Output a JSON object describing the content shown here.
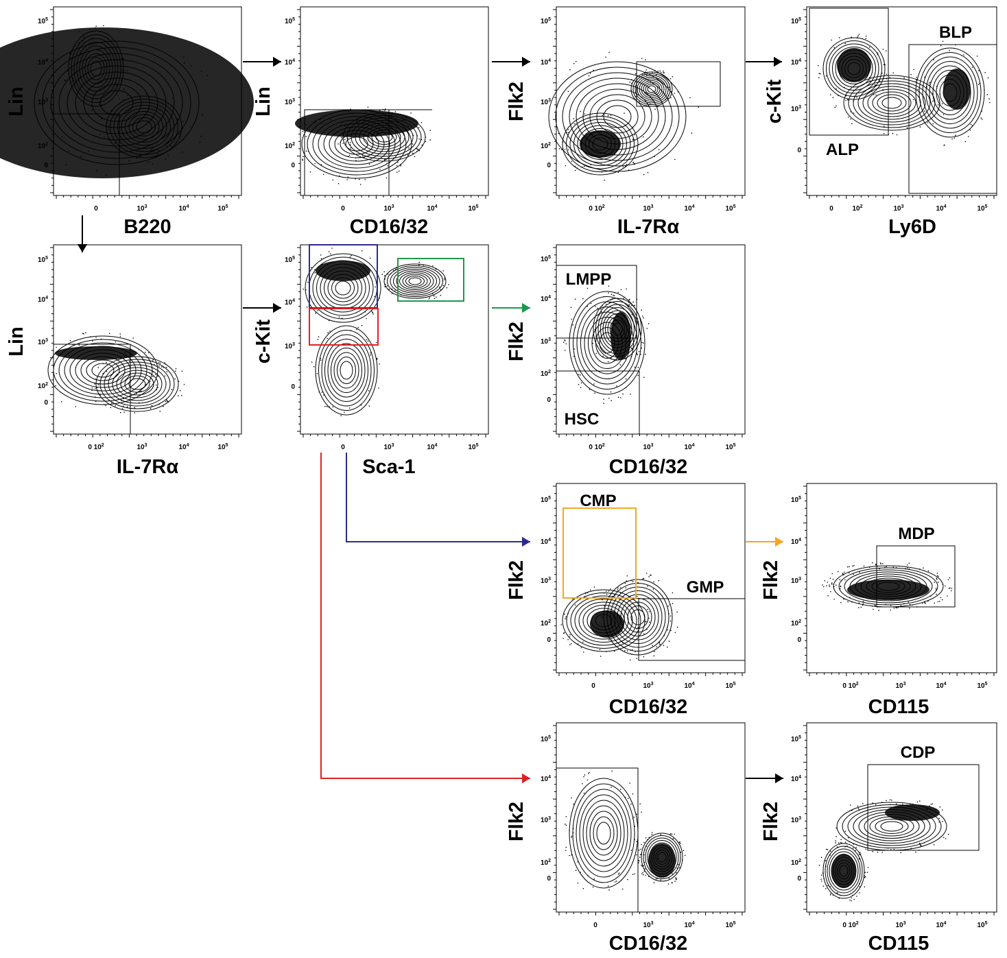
{
  "chart_data": [
    {
      "type": "contour",
      "xlabel": "B220",
      "ylabel": "Lin",
      "x_ticks": [
        "0",
        "10^3",
        "10^4",
        "10^5"
      ],
      "y_ticks": [
        "0",
        "10^2",
        "10^3",
        "10^4",
        "10^5"
      ],
      "gates": [
        {
          "label": "",
          "color": "#000000"
        }
      ]
    },
    {
      "type": "contour",
      "xlabel": "CD16/32",
      "ylabel": "Lin",
      "x_ticks": [
        "0",
        "10^3",
        "10^4",
        "10^5"
      ],
      "y_ticks": [
        "0",
        "10^2",
        "10^3",
        "10^4",
        "10^5"
      ],
      "gates": [
        {
          "label": "",
          "color": "#000000"
        },
        {
          "label": "",
          "color": "#000000"
        }
      ]
    },
    {
      "type": "contour",
      "xlabel": "IL-7Rα",
      "ylabel": "Flk2",
      "x_ticks": [
        "0 10^2",
        "10^3",
        "10^4",
        "10^5"
      ],
      "y_ticks": [
        "0",
        "10^2",
        "10^3",
        "10^4",
        "10^5"
      ],
      "gates": [
        {
          "label": "",
          "color": "#000000"
        }
      ]
    },
    {
      "type": "contour",
      "xlabel": "Ly6D",
      "ylabel": "c-Kit",
      "x_ticks": [
        "0",
        "10^2",
        "10^3",
        "10^4",
        "10^5"
      ],
      "y_ticks": [
        "0",
        "10^3",
        "10^4",
        "10^5"
      ],
      "gates": [
        {
          "label": "ALP",
          "color": "#000000"
        },
        {
          "label": "BLP",
          "color": "#000000"
        }
      ]
    },
    {
      "type": "contour",
      "xlabel": "IL-7Rα",
      "ylabel": "Lin",
      "x_ticks": [
        "0 10^2",
        "10^3",
        "10^4",
        "10^5"
      ],
      "y_ticks": [
        "0",
        "10^2",
        "10^3",
        "10^4",
        "10^5"
      ],
      "gates": [
        {
          "label": "",
          "color": "#000000"
        }
      ]
    },
    {
      "type": "contour",
      "xlabel": "Sca-1",
      "ylabel": "c-Kit",
      "x_ticks": [
        "0",
        "10^3",
        "10^4",
        "10^5"
      ],
      "y_ticks": [
        "0",
        "10^3",
        "10^4",
        "10^5"
      ],
      "gates": [
        {
          "label": "",
          "color": "#2b2b8f"
        },
        {
          "label": "",
          "color": "#e02020"
        },
        {
          "label": "",
          "color": "#1a9a4a"
        }
      ]
    },
    {
      "type": "contour",
      "xlabel": "CD16/32",
      "ylabel": "Flk2",
      "x_ticks": [
        "0 10^2",
        "10^3",
        "10^4",
        "10^5"
      ],
      "y_ticks": [
        "0",
        "10^2",
        "10^3",
        "10^4",
        "10^5"
      ],
      "gates": [
        {
          "label": "LMPP",
          "color": "#000000"
        },
        {
          "label": "HSC",
          "color": "#000000"
        }
      ]
    },
    {
      "type": "contour",
      "xlabel": "CD16/32",
      "ylabel": "Flk2",
      "x_ticks": [
        "0",
        "10^3",
        "10^4",
        "10^5"
      ],
      "y_ticks": [
        "0",
        "10^2",
        "10^3",
        "10^4",
        "10^5"
      ],
      "gates": [
        {
          "label": "CMP",
          "color": "#f5a623"
        },
        {
          "label": "GMP",
          "color": "#000000"
        }
      ]
    },
    {
      "type": "contour",
      "xlabel": "CD115",
      "ylabel": "Flk2",
      "x_ticks": [
        "0 10^2",
        "10^3",
        "10^4",
        "10^5"
      ],
      "y_ticks": [
        "0",
        "10^2",
        "10^3",
        "10^4",
        "10^5"
      ],
      "gates": [
        {
          "label": "MDP",
          "color": "#000000"
        }
      ]
    },
    {
      "type": "contour",
      "xlabel": "CD16/32",
      "ylabel": "Flk2",
      "x_ticks": [
        "0",
        "10^3",
        "10^4",
        "10^5"
      ],
      "y_ticks": [
        "0",
        "10^2",
        "10^3",
        "10^4",
        "10^5"
      ],
      "gates": [
        {
          "label": "",
          "color": "#000000"
        }
      ]
    },
    {
      "type": "contour",
      "xlabel": "CD115",
      "ylabel": "Flk2",
      "x_ticks": [
        "0 10^2",
        "10^3",
        "10^4",
        "10^5"
      ],
      "y_ticks": [
        "0",
        "10^2",
        "10^3",
        "10^4",
        "10^5"
      ],
      "gates": [
        {
          "label": "CDP",
          "color": "#000000"
        }
      ]
    }
  ],
  "colors": {
    "black": "#000000",
    "blue": "#2b2b8f",
    "red": "#e02020",
    "green": "#1a9a4a",
    "orange": "#f5a623"
  }
}
